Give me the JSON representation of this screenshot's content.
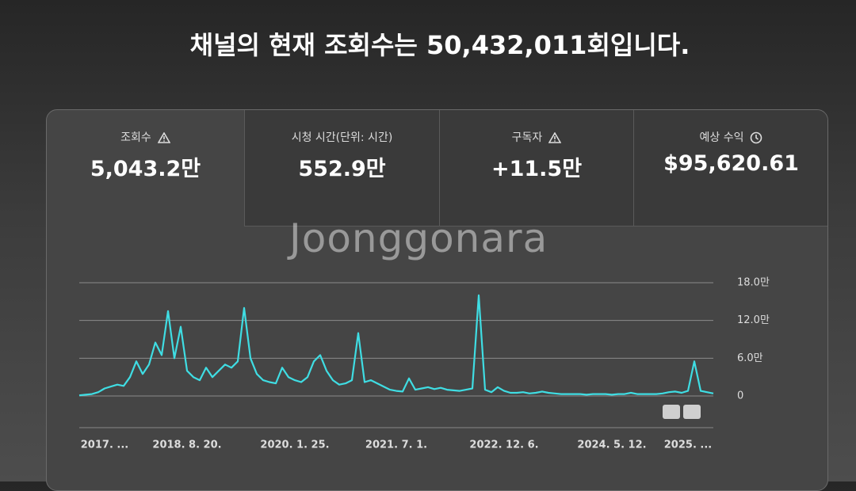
{
  "header": {
    "title": "채널의 현재 조회수는 50,432,011회입니다."
  },
  "stats": [
    {
      "label": "조회수",
      "value": "5,043.2만"
    },
    {
      "label": "시청 시간(단위: 시간)",
      "value": "552.9만"
    },
    {
      "label": "구독자",
      "value": "+11.5만"
    },
    {
      "label": "예상 수익",
      "value": "$95,620.61"
    }
  ],
  "watermark": "Joonggonara",
  "chart_data": {
    "type": "line",
    "categories": [
      null,
      null,
      null,
      null,
      "2017. ...",
      null,
      null,
      null,
      null,
      null,
      null,
      null,
      null,
      null,
      null,
      null,
      null,
      "2018. 8. 20.",
      null,
      null,
      null,
      null,
      null,
      null,
      null,
      null,
      null,
      null,
      null,
      null,
      null,
      null,
      null,
      null,
      "2020. 1. 25.",
      null,
      null,
      null,
      null,
      null,
      null,
      null,
      null,
      null,
      null,
      null,
      null,
      null,
      null,
      null,
      "2021. 7. 1.",
      null,
      null,
      null,
      null,
      null,
      null,
      null,
      null,
      null,
      null,
      null,
      null,
      null,
      null,
      null,
      null,
      "2022. 12. 6.",
      null,
      null,
      null,
      null,
      null,
      null,
      null,
      null,
      null,
      null,
      null,
      null,
      null,
      null,
      null,
      null,
      "2024. 5. 12.",
      null,
      null,
      null,
      null,
      null,
      null,
      null,
      null,
      null,
      null,
      null,
      "2025. ...",
      null,
      null,
      null,
      null
    ],
    "series": [
      {
        "name": "조회수",
        "color": "#3fdde3",
        "values": [
          0.1,
          0.2,
          0.3,
          0.6,
          1.2,
          1.5,
          1.8,
          1.6,
          3.0,
          5.5,
          3.5,
          5.0,
          8.5,
          6.5,
          13.5,
          6.0,
          11.0,
          4.0,
          3.0,
          2.5,
          4.5,
          3.0,
          4.0,
          5.0,
          4.5,
          5.5,
          14.0,
          6.0,
          3.5,
          2.5,
          2.2,
          2.0,
          4.5,
          3.0,
          2.5,
          2.2,
          3.0,
          5.5,
          6.5,
          4.0,
          2.5,
          1.8,
          2.0,
          2.5,
          10.0,
          2.2,
          2.5,
          2.0,
          1.5,
          1.0,
          0.8,
          0.7,
          2.8,
          1.0,
          1.2,
          1.4,
          1.1,
          1.3,
          1.0,
          0.9,
          0.8,
          1.0,
          1.2,
          16.0,
          1.0,
          0.6,
          1.4,
          0.8,
          0.5,
          0.5,
          0.6,
          0.4,
          0.5,
          0.7,
          0.5,
          0.4,
          0.3,
          0.3,
          0.3,
          0.3,
          0.2,
          0.3,
          0.3,
          0.3,
          0.2,
          0.3,
          0.3,
          0.5,
          0.3,
          0.3,
          0.3,
          0.3,
          0.4,
          0.6,
          0.7,
          0.5,
          0.8,
          5.5,
          0.8,
          0.6,
          0.4
        ]
      }
    ],
    "ylim": [
      0,
      18
    ],
    "yticks": [
      0,
      {
        "value": 6,
        "label": "6.0만"
      },
      {
        "value": 12,
        "label": "12.0만"
      },
      {
        "value": 18,
        "label": "18.0만"
      }
    ],
    "grid": true
  }
}
